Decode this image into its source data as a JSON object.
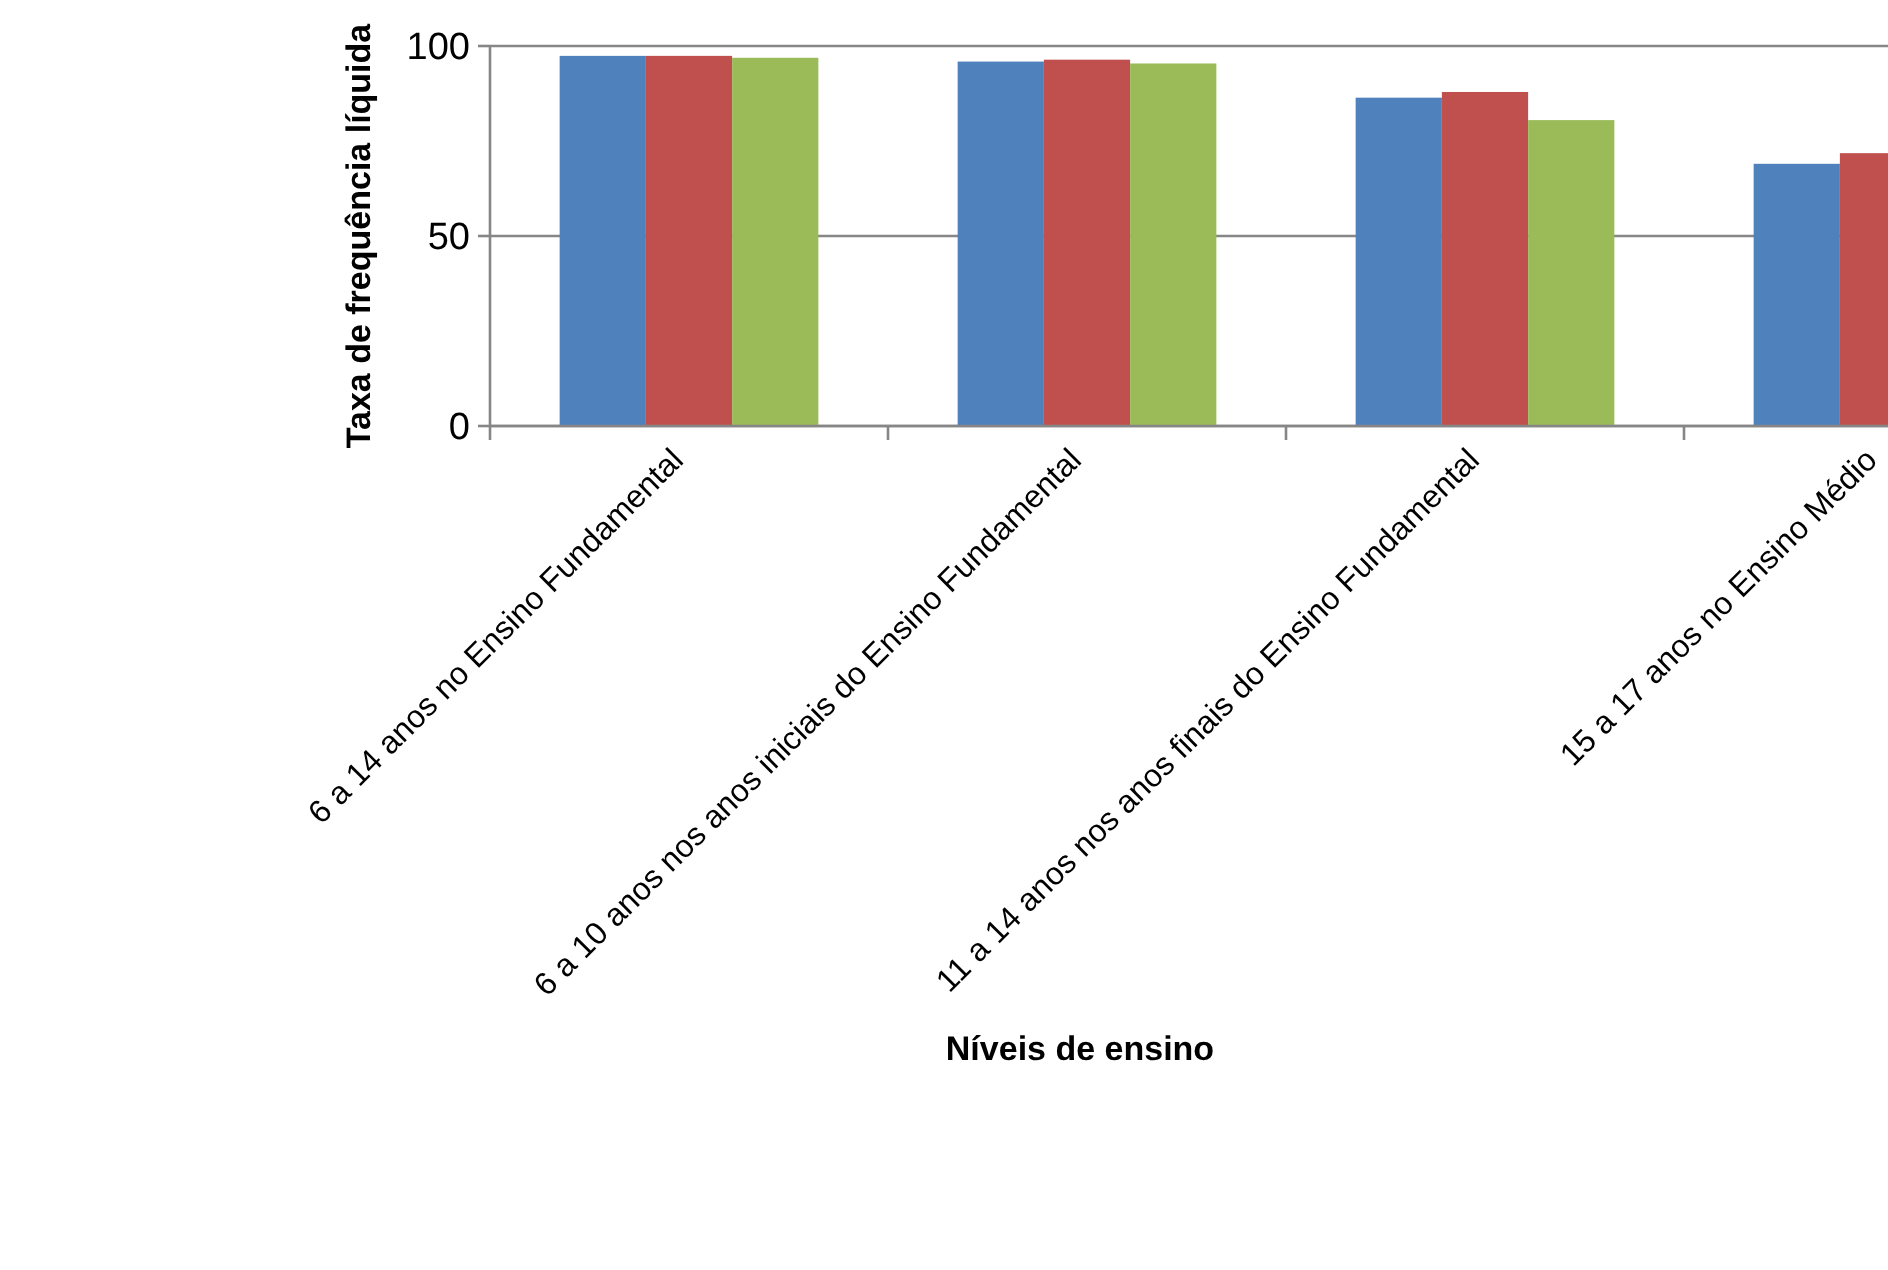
{
  "chart_data": {
    "type": "bar",
    "xlabel": "Níveis de ensino",
    "ylabel": "Taxa de frequência líquida",
    "categories": [
      "6 a 14 anos no Ensino Fundamental",
      "6 a 10 anos nos anos iniciais do Ensino Fundamental",
      "11 a 14 anos nos anos finais do Ensino Fundamental",
      "15 a 17 anos no Ensino Médio"
    ],
    "series": [
      {
        "color": "#4f81bd",
        "values": [
          97.4,
          95.9,
          86.4,
          69
        ]
      },
      {
        "color": "#c0504d",
        "values": [
          97.4,
          96.4,
          87.9,
          71.8
        ]
      },
      {
        "color": "#9bbb59",
        "values": [
          96.9,
          95.4,
          80.5,
          null
        ]
      }
    ],
    "ylim": [
      0,
      100
    ],
    "yticks": [
      0,
      50,
      100
    ],
    "grid": "y"
  }
}
